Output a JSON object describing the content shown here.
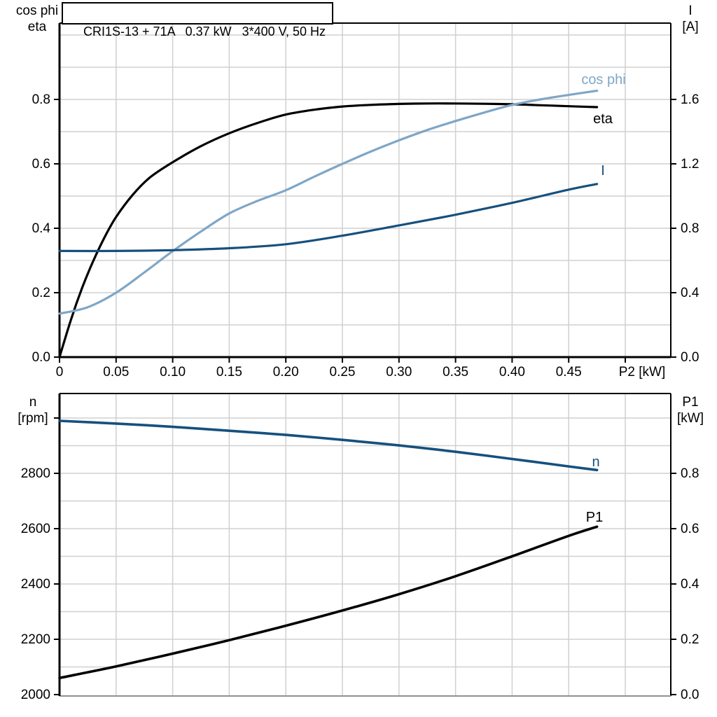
{
  "window": {
    "background": "#ffffff"
  },
  "colors": {
    "eta_curve": "#000000",
    "cos_phi_curve": "#7fa6c6",
    "current_curve": "#16507e",
    "speed_curve": "#16507e",
    "p1_curve": "#000000",
    "grid": "#d0d0d0",
    "frame": "#000000",
    "bottom_baseline": "#909090",
    "text": "#000000"
  },
  "chart_data": [
    {
      "id": "motor-top",
      "type": "line",
      "title": "CRI1S-13 + 71A   0.37 kW   3*400 V, 50 Hz",
      "xlabel": "P2 [kW]",
      "ylabel_left": [
        "cos phi",
        "eta"
      ],
      "ylabel_right": [
        "I",
        "[A]"
      ],
      "xlim": [
        0,
        0.54
      ],
      "ylim_left": [
        0,
        1.037
      ],
      "ylim_right": [
        0,
        2.074
      ],
      "grid": true,
      "x_ticks": {
        "values": [
          0,
          0.05,
          0.1,
          0.15,
          0.2,
          0.25,
          0.3,
          0.35,
          0.4,
          0.45,
          0.5
        ],
        "labels": [
          "0",
          "0.05",
          "0.10",
          "0.15",
          "0.20",
          "0.25",
          "0.30",
          "0.35",
          "0.40",
          "0.45",
          ""
        ]
      },
      "y_ticks_left": {
        "values": [
          0.0,
          0.2,
          0.4,
          0.6,
          0.8
        ],
        "labels": [
          "0.0",
          "0.2",
          "0.4",
          "0.6",
          "0.8"
        ]
      },
      "y_ticks_right": {
        "values": [
          0.0,
          0.4,
          0.8,
          1.2,
          1.6
        ],
        "labels": [
          "0.0",
          "0.4",
          "0.8",
          "1.2",
          "1.6"
        ]
      },
      "series": [
        {
          "name": "eta",
          "axis": "left",
          "color": "#000000",
          "points": [
            [
              0,
              0
            ],
            [
              0.01,
              0.115
            ],
            [
              0.02,
              0.215
            ],
            [
              0.03,
              0.3
            ],
            [
              0.04,
              0.373
            ],
            [
              0.05,
              0.435
            ],
            [
              0.065,
              0.505
            ],
            [
              0.08,
              0.558
            ],
            [
              0.1,
              0.605
            ],
            [
              0.125,
              0.655
            ],
            [
              0.15,
              0.695
            ],
            [
              0.175,
              0.727
            ],
            [
              0.2,
              0.753
            ],
            [
              0.225,
              0.768
            ],
            [
              0.25,
              0.778
            ],
            [
              0.275,
              0.783
            ],
            [
              0.3,
              0.786
            ],
            [
              0.325,
              0.7875
            ],
            [
              0.35,
              0.7875
            ],
            [
              0.375,
              0.7865
            ],
            [
              0.4,
              0.785
            ],
            [
              0.425,
              0.782
            ],
            [
              0.45,
              0.779
            ],
            [
              0.475,
              0.776
            ]
          ]
        },
        {
          "name": "cos phi",
          "axis": "left",
          "color": "#7fa6c6",
          "points": [
            [
              0,
              0.135
            ],
            [
              0.025,
              0.155
            ],
            [
              0.05,
              0.2
            ],
            [
              0.075,
              0.263
            ],
            [
              0.1,
              0.329
            ],
            [
              0.125,
              0.39
            ],
            [
              0.15,
              0.446
            ],
            [
              0.175,
              0.485
            ],
            [
              0.2,
              0.518
            ],
            [
              0.225,
              0.56
            ],
            [
              0.25,
              0.6
            ],
            [
              0.275,
              0.638
            ],
            [
              0.3,
              0.673
            ],
            [
              0.325,
              0.705
            ],
            [
              0.35,
              0.733
            ],
            [
              0.375,
              0.759
            ],
            [
              0.4,
              0.783
            ],
            [
              0.425,
              0.8
            ],
            [
              0.45,
              0.814
            ],
            [
              0.475,
              0.827
            ]
          ]
        },
        {
          "name": "I",
          "axis": "right",
          "color": "#16507e",
          "points": [
            [
              0,
              0.659
            ],
            [
              0.05,
              0.659
            ],
            [
              0.1,
              0.664
            ],
            [
              0.15,
              0.676
            ],
            [
              0.2,
              0.701
            ],
            [
              0.25,
              0.754
            ],
            [
              0.3,
              0.818
            ],
            [
              0.35,
              0.884
            ],
            [
              0.4,
              0.958
            ],
            [
              0.45,
              1.04
            ],
            [
              0.475,
              1.075
            ]
          ]
        }
      ]
    },
    {
      "id": "motor-bottom",
      "type": "line",
      "xlabel": "",
      "ylabel_left": [
        "n",
        "[rpm]"
      ],
      "ylabel_right": [
        "P1",
        "[kW]"
      ],
      "xlim": [
        0,
        0.54
      ],
      "ylim_left": [
        2000,
        3090
      ],
      "ylim_right": [
        0.0,
        1.09
      ],
      "grid": true,
      "x_ticks": {
        "values": [],
        "labels": []
      },
      "y_ticks_left": {
        "values": [
          2000,
          2200,
          2400,
          2600,
          2800,
          3000
        ],
        "labels": [
          "2000",
          "2200",
          "2400",
          "2600",
          "2800",
          ""
        ]
      },
      "y_ticks_right": {
        "values": [
          0.0,
          0.2,
          0.4,
          0.6,
          0.8
        ],
        "labels": [
          "0.0",
          "0.2",
          "0.4",
          "0.6",
          "0.8"
        ]
      },
      "series": [
        {
          "name": "n",
          "axis": "left",
          "color": "#16507e",
          "points": [
            [
              0,
              2990
            ],
            [
              0.05,
              2980
            ],
            [
              0.1,
              2968
            ],
            [
              0.15,
              2954
            ],
            [
              0.2,
              2939
            ],
            [
              0.25,
              2921
            ],
            [
              0.3,
              2901
            ],
            [
              0.35,
              2878
            ],
            [
              0.4,
              2852
            ],
            [
              0.45,
              2825
            ],
            [
              0.475,
              2812
            ]
          ]
        },
        {
          "name": "P1",
          "axis": "right",
          "color": "#000000",
          "points": [
            [
              0,
              0.06
            ],
            [
              0.05,
              0.102
            ],
            [
              0.1,
              0.148
            ],
            [
              0.15,
              0.197
            ],
            [
              0.2,
              0.249
            ],
            [
              0.25,
              0.304
            ],
            [
              0.3,
              0.363
            ],
            [
              0.35,
              0.428
            ],
            [
              0.4,
              0.5
            ],
            [
              0.45,
              0.574
            ],
            [
              0.475,
              0.607
            ]
          ]
        }
      ]
    }
  ]
}
